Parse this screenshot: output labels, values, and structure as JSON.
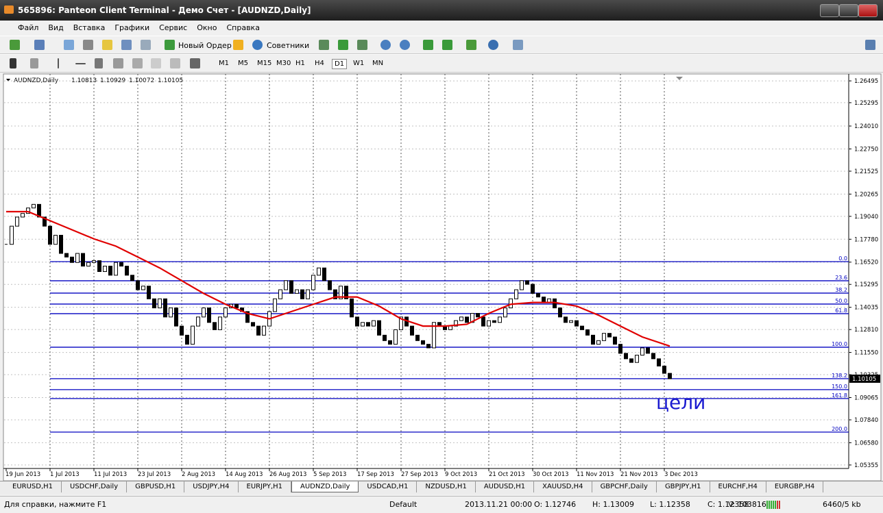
{
  "window": {
    "title": "565896: Panteon Client Terminal - Демо Счет - [AUDNZD,Daily]"
  },
  "menu": [
    "Файл",
    "Вид",
    "Вставка",
    "Графики",
    "Сервис",
    "Окно",
    "Справка"
  ],
  "toolbar": {
    "new_order": "Новый Ордер",
    "experts": "Советники",
    "timeframes": [
      "M1",
      "M5",
      "M15",
      "M30",
      "H1",
      "H4",
      "D1",
      "W1",
      "MN"
    ],
    "active_timeframe": 6
  },
  "chart_data": {
    "type": "candlestick",
    "symbol": "AUDNZD,Daily",
    "header_values": [
      {
        "value": 1.10813,
        "label": "1.10813"
      },
      {
        "value": 1.10929,
        "label": "1.10929"
      },
      {
        "value": 1.10072,
        "label": "1.10072"
      },
      {
        "value": 1.10105,
        "label": "1.10105"
      }
    ],
    "closes": [
      1.175,
      1.185,
      1.19,
      1.192,
      1.195,
      1.197,
      1.19,
      1.185,
      1.175,
      1.18,
      1.17,
      1.168,
      1.165,
      1.17,
      1.163,
      1.165,
      1.166,
      1.16,
      1.163,
      1.158,
      1.165,
      1.163,
      1.158,
      1.155,
      1.15,
      1.152,
      1.145,
      1.14,
      1.145,
      1.135,
      1.14,
      1.13,
      1.125,
      1.12,
      1.13,
      1.135,
      1.14,
      1.132,
      1.128,
      1.135,
      1.14,
      1.142,
      1.14,
      1.138,
      1.132,
      1.13,
      1.125,
      1.13,
      1.138,
      1.145,
      1.15,
      1.155,
      1.148,
      1.15,
      1.145,
      1.15,
      1.158,
      1.162,
      1.155,
      1.15,
      1.145,
      1.152,
      1.145,
      1.135,
      1.13,
      1.132,
      1.13,
      1.133,
      1.125,
      1.122,
      1.12,
      1.128,
      1.135,
      1.13,
      1.125,
      1.122,
      1.12,
      1.118,
      1.132,
      1.13,
      1.128,
      1.13,
      1.133,
      1.135,
      1.132,
      1.137,
      1.135,
      1.13,
      1.133,
      1.132,
      1.135,
      1.14,
      1.145,
      1.15,
      1.155,
      1.153,
      1.148,
      1.146,
      1.143,
      1.145,
      1.14,
      1.135,
      1.132,
      1.133,
      1.13,
      1.128,
      1.125,
      1.12,
      1.122,
      1.126,
      1.124,
      1.12,
      1.115,
      1.112,
      1.11,
      1.114,
      1.118,
      1.115,
      1.112,
      1.108,
      1.104,
      1.101
    ],
    "ma_x": [
      0,
      4,
      8,
      12,
      16,
      20,
      24,
      28,
      32,
      36,
      40,
      44,
      48,
      52,
      56,
      60,
      64,
      68,
      72,
      76,
      80,
      84,
      88,
      92,
      96,
      100,
      104,
      108,
      112,
      116,
      121
    ],
    "ma_values": [
      1.193,
      1.193,
      1.188,
      1.183,
      1.178,
      1.174,
      1.168,
      1.162,
      1.155,
      1.148,
      1.142,
      1.137,
      1.134,
      1.138,
      1.142,
      1.146,
      1.146,
      1.141,
      1.134,
      1.13,
      1.13,
      1.131,
      1.137,
      1.142,
      1.143,
      1.143,
      1.141,
      1.136,
      1.13,
      1.124,
      1.119
    ],
    "ma_color": "#e00000",
    "ylim": [
      1.0505,
      1.268
    ],
    "yticks": [
      1.26495,
      1.25295,
      {
        "value": 1.2401,
        "label": "1.24010"
      },
      {
        "value": 1.2275,
        "label": "1.22750"
      },
      1.21525,
      1.20265,
      {
        "value": 1.1904,
        "label": "1.19040"
      },
      {
        "value": 1.1778,
        "label": "1.17780"
      },
      {
        "value": 1.1652,
        "label": "1.16520"
      },
      1.15295,
      1.14035,
      {
        "value": 1.1281,
        "label": "1.12810"
      },
      {
        "value": 1.1155,
        "label": "1.11550"
      },
      1.10325,
      1.09065,
      {
        "value": 1.0784,
        "label": "1.07840"
      },
      {
        "value": 1.0658,
        "label": "1.06580"
      },
      1.05355
    ],
    "date_labels": [
      "19 Jun 2013",
      "1 Jul 2013",
      "11 Jul 2013",
      "23 Jul 2013",
      "2 Aug 2013",
      "14 Aug 2013",
      "26 Aug 2013",
      "5 Sep 2013",
      "17 Sep 2013",
      "27 Sep 2013",
      "9 Oct 2013",
      "21 Oct 2013",
      "30 Oct 2013",
      "11 Nov 2013",
      "21 Nov 2013",
      "3 Dec 2013"
    ],
    "fibo_color": "#0000c0",
    "fibo": [
      {
        "level": "0.0",
        "value": 1.16548
      },
      {
        "level": "23.6",
        "value": 1.15493
      },
      {
        "level": "38.2",
        "value": 1.14815
      },
      {
        "level": "50.0",
        "value": 1.14212
      },
      {
        "level": "61.8",
        "value": 1.13684
      },
      {
        "level": "100.0",
        "value": 1.11838
      },
      {
        "level": "138.2",
        "value": 1.10105
      },
      {
        "level": "150.0",
        "value": 1.09502
      },
      {
        "level": "161.8",
        "value": 1.09012
      },
      {
        "level": "200.0",
        "value": 1.07166
      }
    ],
    "last_price": 1.10105,
    "annotation": "цели",
    "grid": true
  },
  "tabs": [
    "EURUSD,H1",
    "USDCHF,Daily",
    "GBPUSD,H1",
    "USDJPY,H4",
    "EURJPY,H1",
    "AUDNZD,Daily",
    "USDCAD,H1",
    "NZDUSD,H1",
    "AUDUSD,H1",
    "XAUUSD,H4",
    "GBPCHF,Daily",
    "GBPJPY,H1",
    "EURCHF,H4",
    "EURGBP,H4"
  ],
  "active_tab": 5,
  "status": {
    "help": "Для справки, нажмите F1",
    "profile": "Default",
    "time": "2013.11.21 00:00",
    "open": "O: 1.12746",
    "high": "H: 1.13009",
    "low": "L: 1.12358",
    "close": "C: 1.12358",
    "volume": "V: 103816",
    "traffic": "6460/5 kb"
  }
}
